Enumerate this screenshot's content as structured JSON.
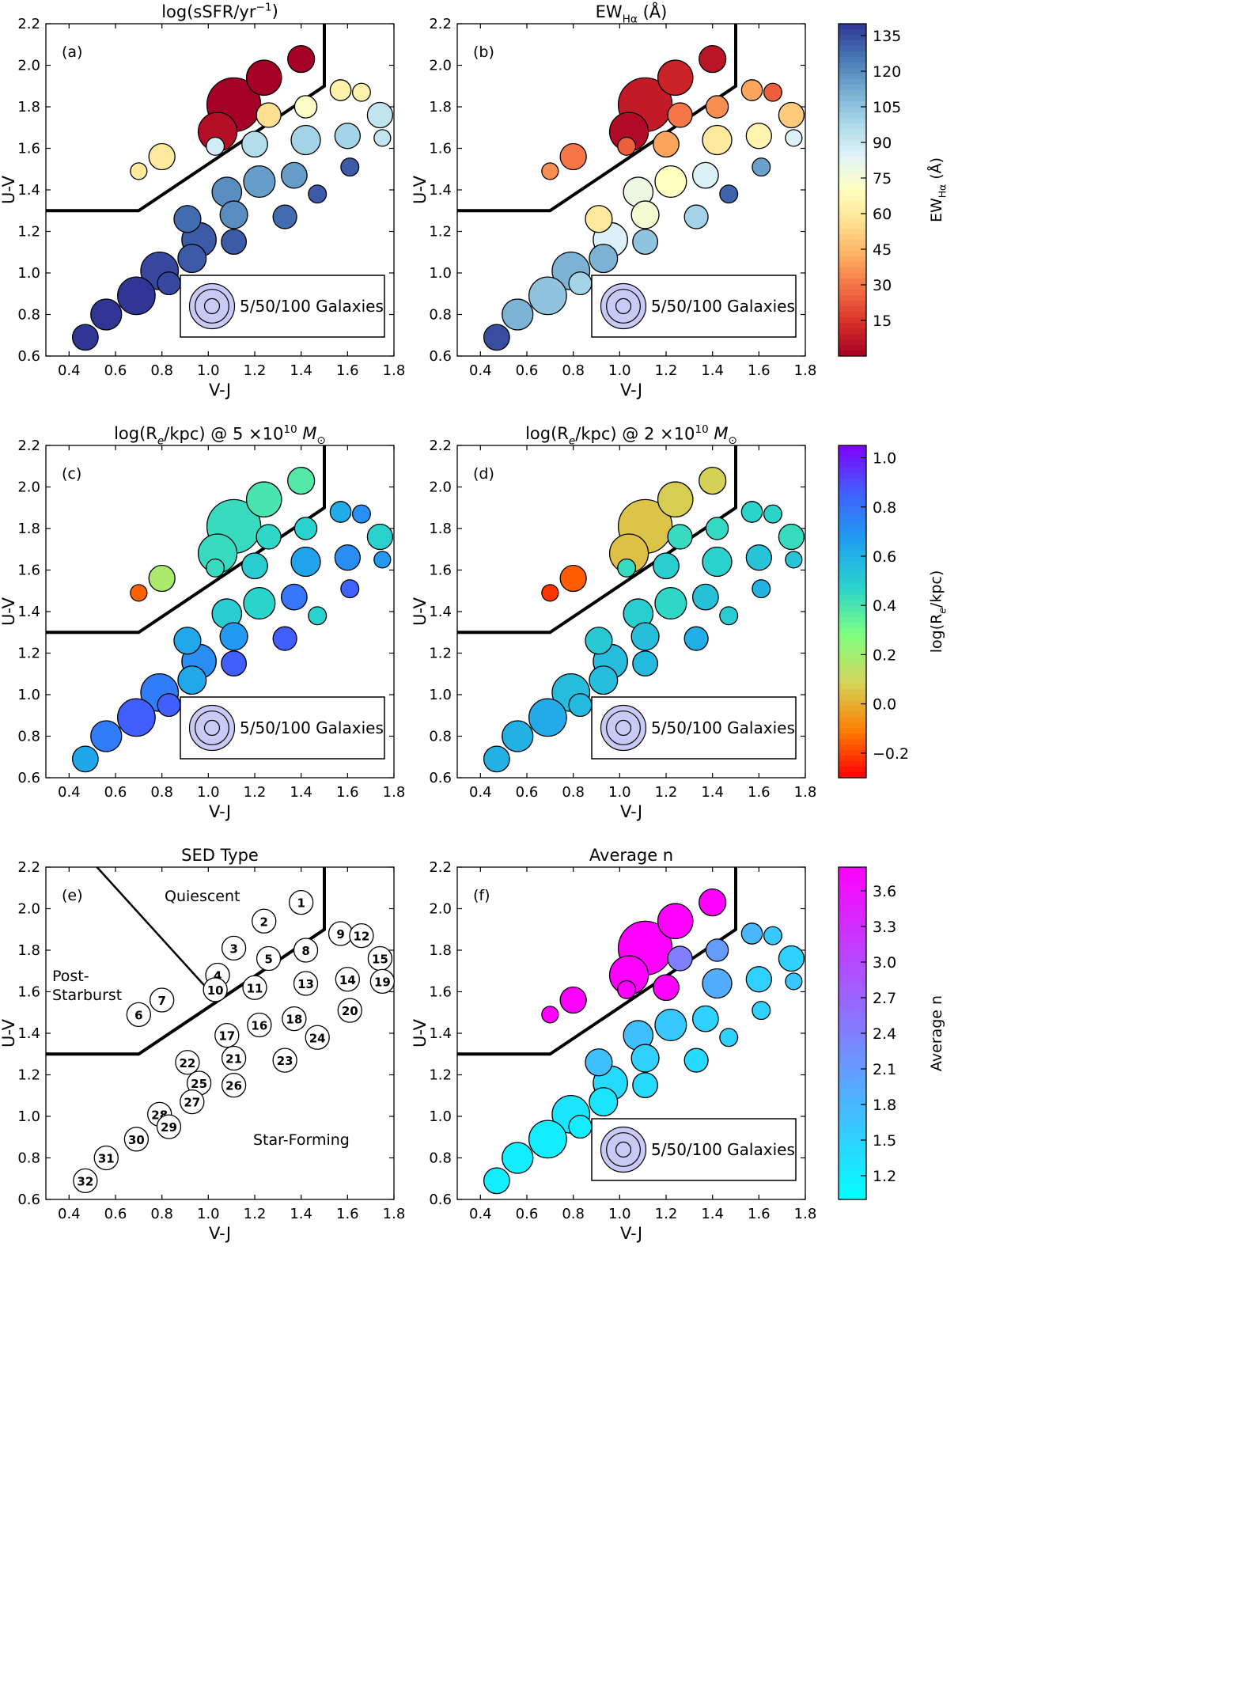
{
  "chart_data": {
    "type": "scatter",
    "x_axis": {
      "label": "V-J",
      "range": [
        0.3,
        1.8
      ],
      "ticks": [
        "0.4",
        "0.6",
        "0.8",
        "1.0",
        "1.2",
        "1.4",
        "1.6",
        "1.8"
      ]
    },
    "y_axis": {
      "label": "U-V",
      "range": [
        0.6,
        2.2
      ],
      "ticks": [
        "0.6",
        "0.8",
        "1.0",
        "1.2",
        "1.4",
        "1.6",
        "1.8",
        "2.0",
        "2.2"
      ]
    },
    "selection_boundary": [
      [
        0.3,
        1.3
      ],
      [
        0.7,
        1.3
      ],
      [
        1.5,
        1.9
      ],
      [
        1.5,
        2.2
      ]
    ],
    "post_starburst_boundary": [
      [
        0.52,
        2.2
      ],
      [
        1.04,
        1.56
      ]
    ],
    "size_legend": "5/50/100 Galaxies",
    "galaxies": [
      {
        "id": 1,
        "vj": 1.4,
        "uv": 2.03,
        "n_gal": 28,
        "ssfr": -11.9,
        "ew": 6,
        "re5": 0.38,
        "re2": 0.08,
        "avg_n": 3.8
      },
      {
        "id": 2,
        "vj": 1.24,
        "uv": 1.94,
        "n_gal": 55,
        "ssfr": -11.8,
        "ew": 10,
        "re5": 0.4,
        "re2": 0.07,
        "avg_n": 3.8
      },
      {
        "id": 3,
        "vj": 1.11,
        "uv": 1.81,
        "n_gal": 150,
        "ssfr": -11.8,
        "ew": 8,
        "re5": 0.44,
        "re2": 0.05,
        "avg_n": 3.8
      },
      {
        "id": 4,
        "vj": 1.04,
        "uv": 1.68,
        "n_gal": 70,
        "ssfr": -11.7,
        "ew": 3,
        "re5": 0.44,
        "re2": 0.04,
        "avg_n": 3.8
      },
      {
        "id": 5,
        "vj": 1.26,
        "uv": 1.76,
        "n_gal": 22,
        "ssfr": -10.4,
        "ew": 30,
        "re5": 0.46,
        "re2": 0.44,
        "avg_n": 2.4
      },
      {
        "id": 6,
        "vj": 0.7,
        "uv": 1.49,
        "n_gal": 7,
        "ssfr": -10.3,
        "ew": 35,
        "re5": -0.15,
        "re2": -0.22,
        "avg_n": 3.8
      },
      {
        "id": 7,
        "vj": 0.8,
        "uv": 1.56,
        "n_gal": 26,
        "ssfr": -10.3,
        "ew": 30,
        "re5": 0.18,
        "re2": -0.16,
        "avg_n": 3.8
      },
      {
        "id": 8,
        "vj": 1.42,
        "uv": 1.8,
        "n_gal": 17,
        "ssfr": -10.0,
        "ew": 35,
        "re5": 0.48,
        "re2": 0.45,
        "avg_n": 2.1
      },
      {
        "id": 9,
        "vj": 1.57,
        "uv": 1.88,
        "n_gal": 14,
        "ssfr": -10.2,
        "ew": 40,
        "re5": 0.62,
        "re2": 0.47,
        "avg_n": 1.8
      },
      {
        "id": 10,
        "vj": 1.03,
        "uv": 1.61,
        "n_gal": 9,
        "ssfr": -9.6,
        "ew": 25,
        "re5": 0.44,
        "re2": 0.44,
        "avg_n": 3.8
      },
      {
        "id": 11,
        "vj": 1.2,
        "uv": 1.62,
        "n_gal": 25,
        "ssfr": -9.4,
        "ew": 40,
        "re5": 0.5,
        "re2": 0.49,
        "avg_n": 3.8
      },
      {
        "id": 12,
        "vj": 1.66,
        "uv": 1.87,
        "n_gal": 9,
        "ssfr": -10.2,
        "ew": 25,
        "re5": 0.71,
        "re2": 0.47,
        "avg_n": 1.6
      },
      {
        "id": 13,
        "vj": 1.42,
        "uv": 1.64,
        "n_gal": 35,
        "ssfr": -9.3,
        "ew": 60,
        "re5": 0.65,
        "re2": 0.48,
        "avg_n": 1.9
      },
      {
        "id": 14,
        "vj": 1.6,
        "uv": 1.66,
        "n_gal": 24,
        "ssfr": -9.3,
        "ew": 65,
        "re5": 0.72,
        "re2": 0.53,
        "avg_n": 1.5
      },
      {
        "id": 15,
        "vj": 1.74,
        "uv": 1.76,
        "n_gal": 24,
        "ssfr": -9.5,
        "ew": 50,
        "re5": 0.48,
        "re2": 0.44,
        "avg_n": 1.5
      },
      {
        "id": 16,
        "vj": 1.22,
        "uv": 1.44,
        "n_gal": 42,
        "ssfr": -8.9,
        "ew": 70,
        "re5": 0.47,
        "re2": 0.46,
        "avg_n": 1.6
      },
      {
        "id": 17,
        "vj": 1.08,
        "uv": 1.39,
        "n_gal": 36,
        "ssfr": -8.8,
        "ew": 78,
        "re5": 0.5,
        "re2": 0.49,
        "avg_n": 1.7
      },
      {
        "id": 18,
        "vj": 1.37,
        "uv": 1.47,
        "n_gal": 25,
        "ssfr": -8.9,
        "ew": 85,
        "re5": 0.79,
        "re2": 0.54,
        "avg_n": 1.5
      },
      {
        "id": 19,
        "vj": 1.75,
        "uv": 1.65,
        "n_gal": 7,
        "ssfr": -9.5,
        "ew": 85,
        "re5": 0.68,
        "re2": 0.53,
        "avg_n": 1.6
      },
      {
        "id": 20,
        "vj": 1.61,
        "uv": 1.51,
        "n_gal": 9,
        "ssfr": -8.5,
        "ew": 115,
        "re5": 0.85,
        "re2": 0.59,
        "avg_n": 1.5
      },
      {
        "id": 21,
        "vj": 1.11,
        "uv": 1.28,
        "n_gal": 30,
        "ssfr": -8.8,
        "ew": 75,
        "re5": 0.68,
        "re2": 0.55,
        "avg_n": 1.5
      },
      {
        "id": 22,
        "vj": 0.91,
        "uv": 1.26,
        "n_gal": 28,
        "ssfr": -8.6,
        "ew": 60,
        "re5": 0.63,
        "re2": 0.51,
        "avg_n": 1.7
      },
      {
        "id": 23,
        "vj": 1.33,
        "uv": 1.27,
        "n_gal": 20,
        "ssfr": -8.6,
        "ew": 100,
        "re5": 0.86,
        "re2": 0.61,
        "avg_n": 1.4
      },
      {
        "id": 24,
        "vj": 1.47,
        "uv": 1.38,
        "n_gal": 9,
        "ssfr": -8.5,
        "ew": 130,
        "re5": 0.48,
        "re2": 0.5,
        "avg_n": 1.5
      },
      {
        "id": 25,
        "vj": 0.96,
        "uv": 1.16,
        "n_gal": 52,
        "ssfr": -8.5,
        "ew": 85,
        "re5": 0.72,
        "re2": 0.56,
        "avg_n": 1.4
      },
      {
        "id": 26,
        "vj": 1.11,
        "uv": 1.15,
        "n_gal": 23,
        "ssfr": -8.5,
        "ew": 105,
        "re5": 0.86,
        "re2": 0.57,
        "avg_n": 1.4
      },
      {
        "id": 27,
        "vj": 0.93,
        "uv": 1.07,
        "n_gal": 32,
        "ssfr": -8.5,
        "ew": 110,
        "re5": 0.63,
        "re2": 0.56,
        "avg_n": 1.3
      },
      {
        "id": 28,
        "vj": 0.79,
        "uv": 1.01,
        "n_gal": 65,
        "ssfr": -8.4,
        "ew": 110,
        "re5": 0.77,
        "re2": 0.56,
        "avg_n": 1.3
      },
      {
        "id": 29,
        "vj": 0.83,
        "uv": 0.95,
        "n_gal": 18,
        "ssfr": -8.4,
        "ew": 100,
        "re5": 0.86,
        "re2": 0.57,
        "avg_n": 1.2
      },
      {
        "id": 30,
        "vj": 0.69,
        "uv": 0.89,
        "n_gal": 65,
        "ssfr": -8.3,
        "ew": 105,
        "re5": 0.86,
        "re2": 0.62,
        "avg_n": 1.2
      },
      {
        "id": 31,
        "vj": 0.56,
        "uv": 0.8,
        "n_gal": 40,
        "ssfr": -8.3,
        "ew": 110,
        "re5": 0.77,
        "re2": 0.6,
        "avg_n": 1.2
      },
      {
        "id": 32,
        "vj": 0.47,
        "uv": 0.69,
        "n_gal": 25,
        "ssfr": -8.2,
        "ew": 135,
        "re5": 0.64,
        "re2": 0.6,
        "avg_n": 1.2
      }
    ],
    "panels": [
      {
        "letter": "(a)",
        "title": "log(sSFR/yr",
        "title_sup": "−1",
        "title_suffix": ")",
        "field": "ssfr",
        "cmap": "rdylbu",
        "crange": [
          -11.8,
          -8.3
        ],
        "legend": true
      },
      {
        "letter": "(b)",
        "title": "EW",
        "title_sub": "Hα",
        "title_suffix": " (Å)",
        "field": "ew",
        "cmap": "rdylbu",
        "crange": [
          0,
          140
        ],
        "legend": true
      },
      {
        "letter": "(c)",
        "title": "log(R",
        "title_sub": "e",
        "title_suffix": "/kpc) @ 5 ×10",
        "title_sup": "10",
        "title_tail": " M",
        "title_tail_sub": "⊙",
        "field": "re5",
        "cmap": "rainbow",
        "crange": [
          -0.3,
          1.05
        ],
        "legend": true
      },
      {
        "letter": "(d)",
        "title": "log(R",
        "title_sub": "e",
        "title_suffix": "/kpc) @ 2 ×10",
        "title_sup": "10",
        "title_tail": " M",
        "title_tail_sub": "⊙",
        "field": "re2",
        "cmap": "rainbow",
        "crange": [
          -0.3,
          1.05
        ],
        "legend": true
      },
      {
        "letter": "(e)",
        "title": "SED Type",
        "field": null,
        "cmap": null,
        "legend": false,
        "region_labels": [
          "Quiescent",
          "Post-",
          "Starburst",
          "Star-Forming"
        ]
      },
      {
        "letter": "(f)",
        "title": "Average n",
        "field": "avg_n",
        "cmap": "cool",
        "crange": [
          1.0,
          3.8
        ],
        "legend": true
      }
    ],
    "colorbars": [
      {
        "label": "EW",
        "label_sub": "Hα",
        "label_suffix": " (Å)",
        "cmap": "rdylbu",
        "crange": [
          0,
          140
        ],
        "ticks": [
          "15",
          "30",
          "45",
          "60",
          "75",
          "90",
          "105",
          "120",
          "135"
        ],
        "tick_values": [
          15,
          30,
          45,
          60,
          75,
          90,
          105,
          120,
          135
        ]
      },
      {
        "label": "log(R",
        "label_sub": "e",
        "label_suffix": "/kpc)",
        "cmap": "rainbow",
        "crange": [
          -0.3,
          1.05
        ],
        "ticks": [
          "−0.2",
          "0.0",
          "0.2",
          "0.4",
          "0.6",
          "0.8",
          "1.0"
        ],
        "tick_values": [
          -0.2,
          0.0,
          0.2,
          0.4,
          0.6,
          0.8,
          1.0
        ]
      },
      {
        "label": "Average n",
        "cmap": "cool",
        "crange": [
          1.0,
          3.8
        ],
        "ticks": [
          "1.2",
          "1.5",
          "1.8",
          "2.1",
          "2.4",
          "2.7",
          "3.0",
          "3.3",
          "3.6"
        ],
        "tick_values": [
          1.2,
          1.5,
          1.8,
          2.1,
          2.4,
          2.7,
          3.0,
          3.3,
          3.6
        ]
      }
    ],
    "colors": {
      "legend_fill": "#c9c9f5",
      "rdylbu": [
        "#a50026",
        "#d73027",
        "#f46d43",
        "#fdae61",
        "#fee090",
        "#ffffbf",
        "#e0f3f8",
        "#abd9e9",
        "#74add1",
        "#4575b4",
        "#313695"
      ],
      "rainbow": [
        "#ff0000",
        "#ff7f00",
        "#d4d45a",
        "#80ff80",
        "#2ad4cc",
        "#1f9ff0",
        "#4060ff",
        "#8000ff"
      ],
      "cool": [
        "#00ffff",
        "#ff00ff"
      ]
    }
  }
}
